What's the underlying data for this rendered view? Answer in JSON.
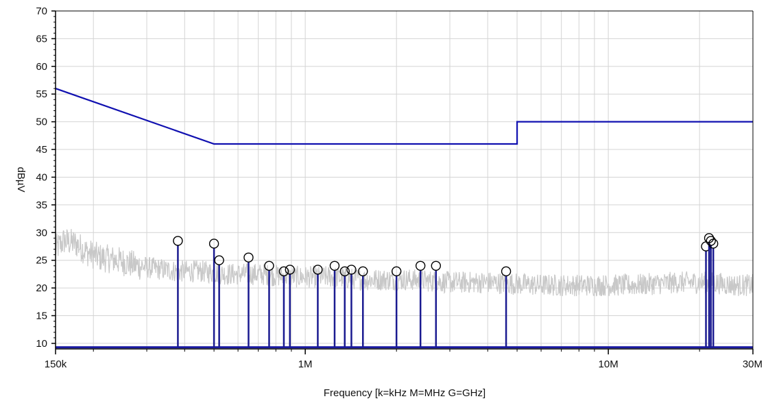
{
  "chart_data": {
    "type": "line",
    "title": "",
    "xlabel": "Frequency [k=kHz M=MHz G=GHz]",
    "ylabel": "dBµV",
    "x_scale": "log",
    "xlim": [
      150000,
      30000000
    ],
    "ylim": [
      9,
      70
    ],
    "grid": true,
    "legend": "none",
    "x_ticks": [
      {
        "value": 150000,
        "label": "150k"
      },
      {
        "value": 1000000,
        "label": "1M"
      },
      {
        "value": 10000000,
        "label": "10M"
      },
      {
        "value": 30000000,
        "label": "30M"
      }
    ],
    "y_ticks": [
      {
        "value": 10,
        "label": "10"
      },
      {
        "value": 15,
        "label": "15"
      },
      {
        "value": 20,
        "label": "20"
      },
      {
        "value": 25,
        "label": "25"
      },
      {
        "value": 30,
        "label": "30"
      },
      {
        "value": 35,
        "label": "35"
      },
      {
        "value": 40,
        "label": "40"
      },
      {
        "value": 45,
        "label": "45"
      },
      {
        "value": 50,
        "label": "50"
      },
      {
        "value": 55,
        "label": "55"
      },
      {
        "value": 60,
        "label": "60"
      },
      {
        "value": 65,
        "label": "65"
      },
      {
        "value": 70,
        "label": "70"
      }
    ],
    "colors": {
      "limit": "#1010b0",
      "trace": "#c8c8c8",
      "marker_stem": "#1a1a90",
      "marker_circle": "#000000",
      "grid": "#d4d4d4",
      "baseline": "#1a1aa0"
    },
    "limit_line": {
      "x": [
        150000,
        500000,
        500000,
        5000000,
        5000000,
        30000000
      ],
      "y": [
        56,
        46,
        46,
        46,
        50,
        50
      ]
    },
    "trace_profile": {
      "x": [
        150000,
        160000,
        175000,
        190000,
        210000,
        240000,
        280000,
        320000,
        380000,
        450000,
        550000,
        700000,
        900000,
        1200000,
        1600000,
        2200000,
        3000000,
        4000000,
        6000000,
        8000000,
        12000000,
        17000000,
        22000000,
        26000000,
        30000000
      ],
      "y": [
        27,
        28.5,
        28,
        26.5,
        25.5,
        25,
        24,
        23.5,
        23,
        23,
        22.5,
        22.5,
        22,
        22,
        21.5,
        21.5,
        21,
        21,
        20.5,
        20.5,
        20.5,
        21,
        21,
        20.5,
        20.5
      ]
    },
    "peaks": [
      {
        "x": 380000,
        "y": 28.5
      },
      {
        "x": 500000,
        "y": 28
      },
      {
        "x": 520000,
        "y": 25
      },
      {
        "x": 650000,
        "y": 25.5
      },
      {
        "x": 760000,
        "y": 24
      },
      {
        "x": 850000,
        "y": 23
      },
      {
        "x": 890000,
        "y": 23.3
      },
      {
        "x": 1100000,
        "y": 23.3
      },
      {
        "x": 1250000,
        "y": 24
      },
      {
        "x": 1350000,
        "y": 23
      },
      {
        "x": 1420000,
        "y": 23.3
      },
      {
        "x": 1550000,
        "y": 23
      },
      {
        "x": 2000000,
        "y": 23
      },
      {
        "x": 2400000,
        "y": 24
      },
      {
        "x": 2700000,
        "y": 24
      },
      {
        "x": 4600000,
        "y": 23
      },
      {
        "x": 21000000,
        "y": 27.5
      },
      {
        "x": 21500000,
        "y": 29
      },
      {
        "x": 21800000,
        "y": 28.5
      },
      {
        "x": 22200000,
        "y": 28
      }
    ]
  }
}
